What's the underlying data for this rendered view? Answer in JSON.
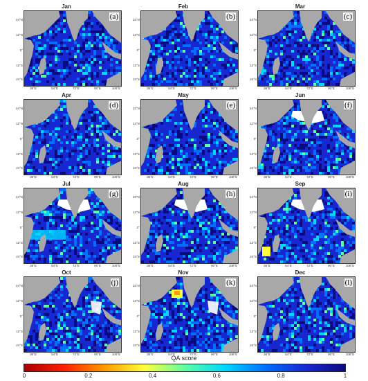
{
  "panels": [
    {
      "month": "Jan",
      "label": "(a)"
    },
    {
      "month": "Feb",
      "label": "(b)"
    },
    {
      "month": "Mar",
      "label": "(c)"
    },
    {
      "month": "Apr",
      "label": "(d)"
    },
    {
      "month": "May",
      "label": "(e)"
    },
    {
      "month": "Jun",
      "label": "(f)"
    },
    {
      "month": "Jul",
      "label": "(g)"
    },
    {
      "month": "Aug",
      "label": "(h)"
    },
    {
      "month": "Sep",
      "label": "(i)"
    },
    {
      "month": "Oct",
      "label": "(j)"
    },
    {
      "month": "Nov",
      "label": "(k)"
    },
    {
      "month": "Dec",
      "label": "(l)"
    }
  ],
  "y_ticks": [
    "24°N",
    "12°N",
    "0°",
    "12°S",
    "24°S"
  ],
  "x_ticks": [
    "36°E",
    "54°E",
    "72°E",
    "90°E",
    "108°E"
  ],
  "colorbar": {
    "title": "QA score",
    "ticks": [
      "0",
      "0.2",
      "0.4",
      "0.6",
      "0.8",
      "1"
    ],
    "colors": [
      "#a80000",
      "#ff2000",
      "#ff9a00",
      "#ffff3c",
      "#5dffa0",
      "#00d8ff",
      "#0070ff",
      "#1828d0",
      "#0a0a80"
    ]
  }
}
